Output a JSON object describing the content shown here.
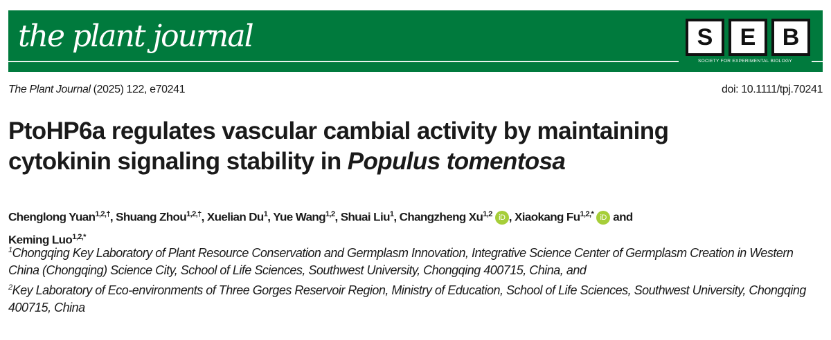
{
  "header": {
    "journal_logo": "the plant journal",
    "society_logo": [
      "S",
      "E",
      "B"
    ],
    "society_name": "SOCIETY FOR EXPERIMENTAL BIOLOGY",
    "brand_color": "#007a3d"
  },
  "citation": {
    "journal": "The Plant Journal",
    "rest": " (2025) 122, e70241",
    "doi": "doi: 10.1111/tpj.70241"
  },
  "title": {
    "line1": "PtoHP6a regulates vascular cambial activity by maintaining",
    "line2_prefix": "cytokinin signaling stability in ",
    "species": "Populus tomentosa"
  },
  "authors": [
    {
      "name": "Chenglong Yuan",
      "sup": "1,2,†",
      "sep": ", "
    },
    {
      "name": "Shuang Zhou",
      "sup": "1,2,†",
      "sep": ", "
    },
    {
      "name": "Xuelian Du",
      "sup": "1",
      "sep": ", "
    },
    {
      "name": "Yue Wang",
      "sup": "1,2",
      "sep": ", "
    },
    {
      "name": "Shuai Liu",
      "sup": "1",
      "sep": ", "
    },
    {
      "name": "Changzheng Xu",
      "sup": "1,2",
      "orcid": "iD",
      "sep": ", "
    },
    {
      "name": "Xiaokang Fu",
      "sup": "1,2,*",
      "orcid": "iD",
      "sep": " and "
    },
    {
      "name": "Keming Luo",
      "sup": "1,2,*",
      "sep": ""
    }
  ],
  "affiliations": [
    {
      "num": "1",
      "text": "Chongqing Key Laboratory of Plant Resource Conservation and Germplasm Innovation, Integrative Science Center of Germplasm Creation in Western China (Chongqing) Science City, School of Life Sciences, Southwest University, Chongqing 400715, China, and"
    },
    {
      "num": "2",
      "text": "Key Laboratory of Eco-environments of Three Gorges Reservoir Region, Ministry of Education, School of Life Sciences, Southwest University, Chongqing 400715, China"
    }
  ]
}
